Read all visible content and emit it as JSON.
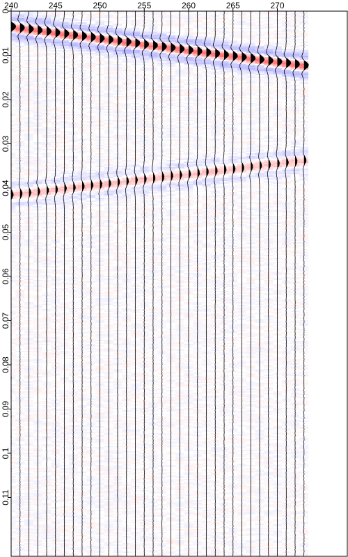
{
  "chart_data": {
    "type": "heatmap",
    "subtype": "seismic-wiggle-variable-density",
    "title": "",
    "xlabel": "",
    "ylabel": "",
    "x_axis_position": "top",
    "y_axis_position": "left",
    "x_range": [
      240,
      274
    ],
    "y_range": [
      0,
      0.12
    ],
    "y_inverted": true,
    "x_ticks": [
      {
        "value": 240,
        "label": "240"
      },
      {
        "value": 245,
        "label": "245"
      },
      {
        "value": 250,
        "label": "250"
      },
      {
        "value": 255,
        "label": "255"
      },
      {
        "value": 260,
        "label": "260"
      },
      {
        "value": 265,
        "label": "265"
      },
      {
        "value": 270,
        "label": "270"
      }
    ],
    "y_ticks": [
      {
        "value": 0,
        "label": "0"
      },
      {
        "value": 0.01,
        "label": "0.01"
      },
      {
        "value": 0.02,
        "label": "0.02"
      },
      {
        "value": 0.03,
        "label": "0.03"
      },
      {
        "value": 0.04,
        "label": "0.04"
      },
      {
        "value": 0.05,
        "label": "0.05"
      },
      {
        "value": 0.06,
        "label": "0.06"
      },
      {
        "value": 0.07,
        "label": "0.07"
      },
      {
        "value": 0.08,
        "label": "0.08"
      },
      {
        "value": 0.09,
        "label": "0.09"
      },
      {
        "value": 0.1,
        "label": "0.1"
      },
      {
        "value": 0.11,
        "label": "0.11"
      }
    ],
    "traces": [
      240,
      241,
      242,
      243,
      244,
      245,
      246,
      247,
      248,
      249,
      250,
      251,
      252,
      253,
      254,
      255,
      256,
      257,
      258,
      259,
      260,
      261,
      262,
      263,
      264,
      265,
      266,
      267,
      268,
      269,
      270,
      271,
      272,
      273
    ],
    "events": [
      {
        "name": "",
        "strength": "strong",
        "t_start": 0.0035,
        "t_end": 0.0125,
        "x_start": 240,
        "x_end": 274
      },
      {
        "name": "",
        "strength": "weak",
        "t_start": 0.0415,
        "t_end": 0.0335,
        "x_start": 240,
        "x_end": 274
      }
    ],
    "colors": {
      "positive": "#ff0000",
      "negative": "#0000ff",
      "wiggle": "#000000",
      "background": "#ffffff"
    },
    "grid": false,
    "legend": "none"
  }
}
